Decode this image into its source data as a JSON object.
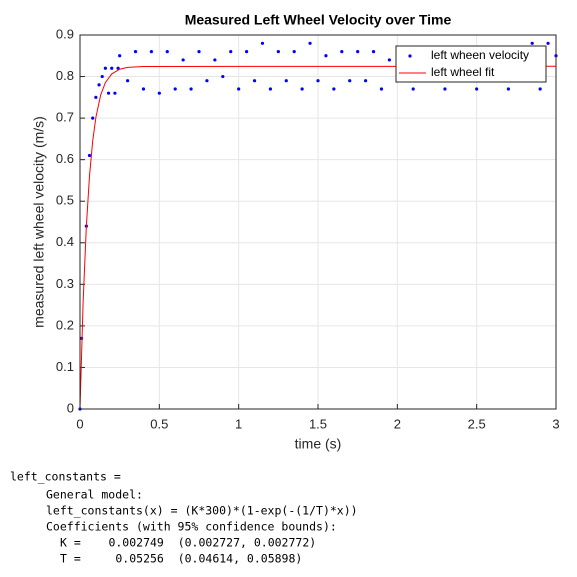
{
  "chart_data": {
    "type": "scatter",
    "title": "Measured Left Wheel Velocity over Time",
    "x_label": "time (s)",
    "y_label": "measured left wheel velocity (m/s)",
    "xlim": [
      0,
      3
    ],
    "xticks": [
      0,
      0.5,
      1,
      1.5,
      2,
      2.5,
      3
    ],
    "ylim": [
      0,
      0.9
    ],
    "yticks": [
      0,
      0.1,
      0.2,
      0.3,
      0.4,
      0.5,
      0.6,
      0.7,
      0.8,
      0.9
    ],
    "grid": true,
    "legend": "top-right",
    "series": [
      {
        "name": "left wheen velocity",
        "type": "scatter",
        "color": "#0000ff",
        "x": [
          0,
          0.01,
          0.04,
          0.06,
          0.08,
          0.1,
          0.12,
          0.14,
          0.16,
          0.18,
          0.2,
          0.22,
          0.24,
          0.25,
          0.3,
          0.35,
          0.4,
          0.45,
          0.5,
          0.55,
          0.6,
          0.65,
          0.7,
          0.75,
          0.8,
          0.85,
          0.9,
          0.95,
          1,
          1.05,
          1.1,
          1.15,
          1.2,
          1.25,
          1.3,
          1.35,
          1.4,
          1.45,
          1.5,
          1.55,
          1.6,
          1.65,
          1.7,
          1.75,
          1.8,
          1.85,
          1.9,
          1.95,
          2,
          2.05,
          2.1,
          2.15,
          2.2,
          2.25,
          2.3,
          2.35,
          2.4,
          2.45,
          2.5,
          2.55,
          2.6,
          2.65,
          2.7,
          2.75,
          2.8,
          2.85,
          2.9,
          2.95,
          3
        ],
        "values": [
          0,
          0.17,
          0.44,
          0.61,
          0.7,
          0.75,
          0.78,
          0.8,
          0.82,
          0.76,
          0.82,
          0.76,
          0.82,
          0.85,
          0.79,
          0.86,
          0.77,
          0.86,
          0.76,
          0.86,
          0.77,
          0.84,
          0.77,
          0.86,
          0.79,
          0.84,
          0.8,
          0.86,
          0.77,
          0.86,
          0.79,
          0.88,
          0.77,
          0.86,
          0.79,
          0.86,
          0.77,
          0.88,
          0.79,
          0.85,
          0.77,
          0.86,
          0.79,
          0.86,
          0.79,
          0.86,
          0.77,
          0.84,
          0.8,
          0.86,
          0.77,
          0.84,
          0.79,
          0.84,
          0.77,
          0.86,
          0.79,
          0.84,
          0.77,
          0.86,
          0.79,
          0.84,
          0.77,
          0.86,
          0.79,
          0.88,
          0.77,
          0.88,
          0.85
        ]
      },
      {
        "name": "left wheel fit",
        "type": "line",
        "color": "#ff0000",
        "x": [
          0,
          0.02,
          0.04,
          0.06,
          0.08,
          0.1,
          0.13,
          0.16,
          0.2,
          0.25,
          0.3,
          0.4,
          3
        ],
        "values": [
          0,
          0.261,
          0.4394,
          0.5614,
          0.6447,
          0.7017,
          0.7552,
          0.7854,
          0.8063,
          0.8176,
          0.822,
          0.8243,
          0.8247
        ]
      }
    ]
  },
  "console": {
    "lines": [
      "left_constants =",
      "General model:",
      "left_constants(x) = (K*300)*(1-exp(-(1/T)*x))",
      "Coefficients (with 95% confidence bounds):",
      "K =    0.002749  (0.002727, 0.002772)",
      "T =     0.05256  (0.04614, 0.05898)"
    ]
  }
}
